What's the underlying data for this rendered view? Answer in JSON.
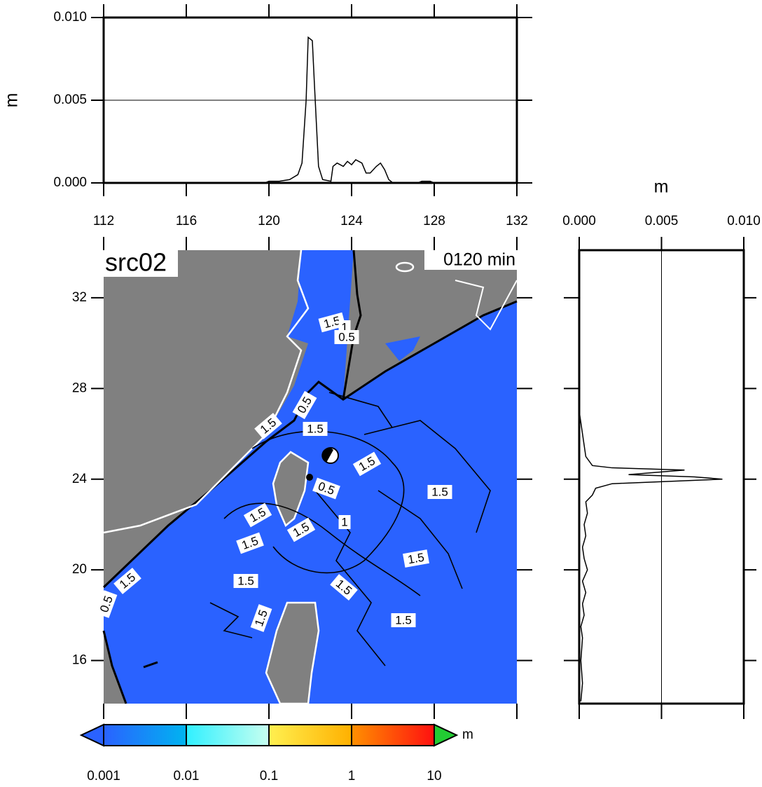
{
  "chart_data": [
    {
      "type": "line",
      "y_label": "m",
      "x": [
        112,
        119.8,
        120,
        120.5,
        121,
        121.4,
        121.6,
        121.8,
        121.9,
        122.1,
        122.2,
        122.4,
        122.6,
        123,
        123.1,
        123.3,
        123.6,
        123.8,
        124,
        124.2,
        124.5,
        124.7,
        124.9,
        125.2,
        125.4,
        125.6,
        125.8,
        126,
        127.2,
        127.4,
        127.8,
        128,
        132
      ],
      "series": [
        {
          "color": "#000000",
          "values": [
            0,
            0,
            0.0001,
            0.0001,
            0.0002,
            0.0005,
            0.0012,
            0.005,
            0.0088,
            0.0086,
            0.006,
            0.001,
            0.0002,
            0.0001,
            0.001,
            0.0012,
            0.001,
            0.0013,
            0.0011,
            0.0014,
            0.0012,
            0.0006,
            0.0006,
            0.001,
            0.0012,
            0.0008,
            0.0002,
            0,
            0,
            0.0001,
            0.0001,
            0,
            0
          ]
        }
      ],
      "xlim": [
        112,
        132
      ],
      "xticks": [
        112,
        116,
        120,
        124,
        128,
        132
      ],
      "ylim": [
        0,
        0.01
      ],
      "yticks": [
        {
          "value": 0,
          "label": "0.000"
        },
        {
          "value": 0.005,
          "label": "0.005"
        },
        {
          "value": 0.01,
          "label": "0.010"
        }
      ],
      "grid": true
    },
    {
      "type": "map",
      "title": "src02",
      "time_label": "0120 min",
      "xlim": [
        112,
        132
      ],
      "ylim": [
        14.1,
        34.1
      ],
      "yticks": [
        16,
        20,
        24,
        28,
        32
      ],
      "land_color": "#808080",
      "ocean_color": "#2a62ff",
      "contour_labels": [
        "1.5",
        "1",
        "0.5",
        "0.5",
        "1.5",
        "1.5",
        "1.5",
        "0.5",
        "1.5",
        "1.5",
        "1.5",
        "1",
        "1.5",
        "1.5",
        "1.5",
        "1.5",
        "1.5",
        "0.5",
        "1.5",
        "1.5"
      ],
      "colorbar": {
        "unit": "m",
        "ticks": [
          0.001,
          0.01,
          0.1,
          1,
          10
        ],
        "colors": [
          [
            "#2a62ff",
            "#00b4f0"
          ],
          [
            "#30f0ff",
            "#c8fff0"
          ],
          [
            "#fff050",
            "#ffb000"
          ],
          [
            "#ff9000",
            "#ff1010"
          ]
        ],
        "under_color": "#2a62ff",
        "over_color": "#22cc33"
      }
    },
    {
      "type": "line",
      "x_label": "m",
      "y": [
        14.2,
        15,
        16,
        17,
        17.5,
        18,
        18.5,
        19,
        19.5,
        20,
        20.5,
        21,
        21.5,
        22,
        22.5,
        23,
        23.3,
        23.6,
        23.8,
        24,
        24.1,
        24.2,
        24.4,
        24.5,
        24.6,
        25,
        25.5,
        26,
        26.5,
        27,
        34.1
      ],
      "series": [
        {
          "color": "#000000",
          "values": [
            0.0001,
            0.0002,
            0.0001,
            0.0002,
            0.0001,
            0.0003,
            0.0002,
            0.0004,
            0.0002,
            0.0005,
            0.0003,
            0.0002,
            0.0004,
            0.0003,
            0.0005,
            0.0004,
            0.0008,
            0.001,
            0.002,
            0.0087,
            0.007,
            0.003,
            0.0064,
            0.002,
            0.0008,
            0.0004,
            0.0003,
            0.0002,
            0.0001,
            0,
            0
          ]
        }
      ],
      "xlim": [
        0,
        0.01
      ],
      "xticks": [
        {
          "value": 0,
          "label": "0.000"
        },
        {
          "value": 0.005,
          "label": "0.005"
        },
        {
          "value": 0.01,
          "label": "0.010"
        }
      ],
      "grid": true
    }
  ]
}
